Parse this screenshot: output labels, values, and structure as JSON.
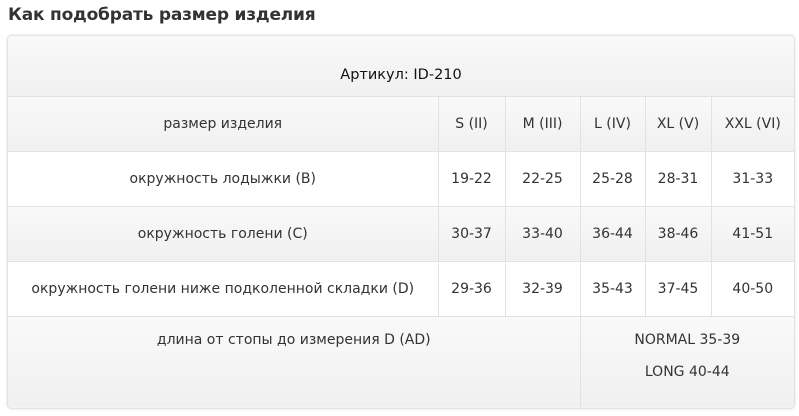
{
  "heading": "Как подобрать размер изделия",
  "table": {
    "article": "Артикул: ID-210",
    "header": {
      "label": "размер изделия",
      "sizes": [
        "S (II)",
        "M (III)",
        "L (IV)",
        "XL (V)",
        "XXL (VI)"
      ]
    },
    "rows": [
      {
        "label": "окружность лодыжки (B)",
        "values": [
          "19-22",
          "22-25",
          "25-28",
          "28-31",
          "31-33"
        ]
      },
      {
        "label": "окружность голени (C)",
        "values": [
          "30-37",
          "33-40",
          "36-44",
          "38-46",
          "41-51"
        ]
      },
      {
        "label": "окружность голени ниже подколенной складки (D)",
        "values": [
          "29-36",
          "32-39",
          "35-43",
          "37-45",
          "40-50"
        ]
      }
    ],
    "length": {
      "label": "длина от стопы до измерения D (AD)",
      "normal": "NORMAL 35-39",
      "long": "LONG 40-44"
    }
  }
}
